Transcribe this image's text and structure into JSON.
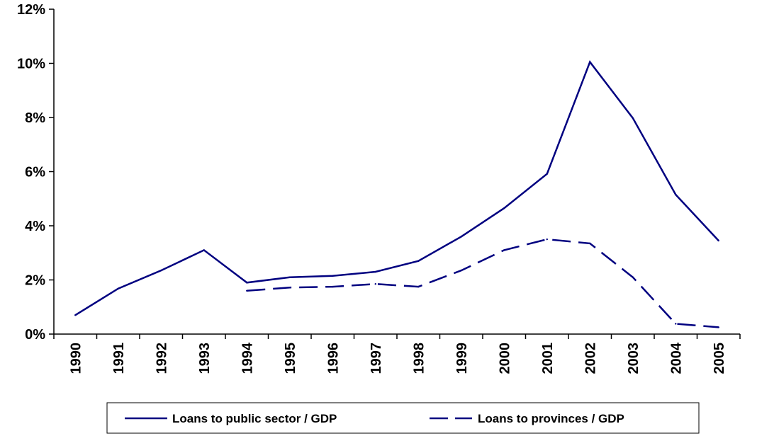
{
  "chart_data": {
    "type": "line",
    "categories": [
      "1990",
      "1991",
      "1992",
      "1993",
      "1994",
      "1995",
      "1996",
      "1997",
      "1998",
      "1999",
      "2000",
      "2001",
      "2002",
      "2003",
      "2004",
      "2005"
    ],
    "series": [
      {
        "name": "Loans to public sector / GDP",
        "values": [
          0.7,
          1.68,
          2.35,
          3.1,
          1.9,
          2.1,
          2.15,
          2.3,
          2.7,
          3.6,
          4.65,
          5.92,
          10.05,
          7.98,
          5.15,
          3.45
        ],
        "line_style": "solid",
        "color": "#000080"
      },
      {
        "name": "Loans to provinces / GDP",
        "values": [
          null,
          null,
          null,
          null,
          1.6,
          1.72,
          1.75,
          1.85,
          1.75,
          2.35,
          3.1,
          3.5,
          3.35,
          2.1,
          0.38,
          0.25
        ],
        "line_style": "dashed",
        "color": "#000080"
      }
    ],
    "ylim": [
      0,
      12
    ],
    "yticks": [
      0,
      2,
      4,
      6,
      8,
      10,
      12
    ],
    "ytick_labels": [
      "0%",
      "2%",
      "4%",
      "6%",
      "8%",
      "10%",
      "12%"
    ],
    "title": "",
    "xlabel": "",
    "ylabel": "",
    "grid": false,
    "legend_position": "bottom"
  }
}
